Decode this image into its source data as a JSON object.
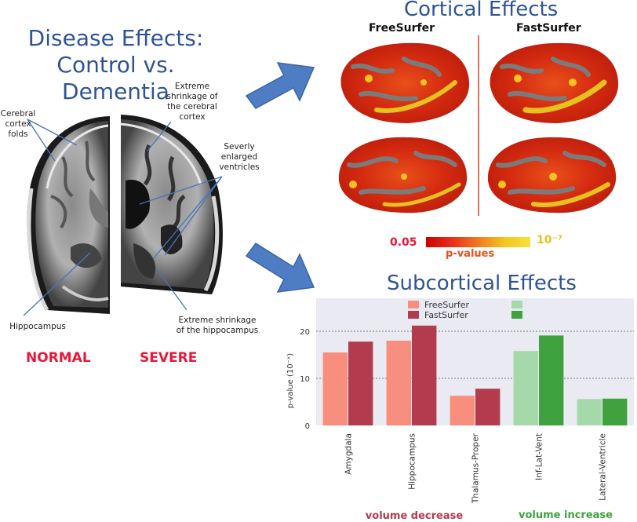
{
  "left": {
    "title_line1": "Disease Effects:",
    "title_line2": "Control vs. Dementia",
    "annotations": {
      "cortex_folds": [
        "Cerebral",
        "cortex",
        "folds"
      ],
      "shrink_cortex": [
        "Extreme",
        "shrinkage of",
        "the cerebral",
        "cortex"
      ],
      "ventricles": [
        "Severly",
        "enlarged",
        "ventricles"
      ],
      "hippocampus": "Hippocampus",
      "shrink_hippo": [
        "Extreme shrinkage",
        "of the hippocampus"
      ]
    },
    "normal_label": "NORMAL",
    "severe_label": "SEVERE"
  },
  "cortical": {
    "title": "Cortical Effects",
    "col1": "FreeSurfer",
    "col2": "FastSurfer",
    "colorbar_min": "0.05",
    "colorbar_max": "10⁻⁷",
    "colorbar_label": "p-values"
  },
  "subcortical": {
    "title": "Subcortical Effects",
    "legend": [
      "FreeSurfer",
      "FastSurfer"
    ],
    "ylabel": "p-value (10⁻ˣ)",
    "group_labels": [
      "volume decrease",
      "volume increase"
    ],
    "colors": {
      "decrease_light": "#f88f7e",
      "decrease_dark": "#b23c4e",
      "increase_light": "#a6d9a9",
      "increase_dark": "#3fa23f"
    }
  },
  "chart_data": {
    "type": "bar",
    "categories": [
      "Amygdala",
      "Hippocampus",
      "Thalamus-Proper",
      "Inf-Lat-Vent",
      "Lateral-Ventricle"
    ],
    "series": [
      {
        "name": "FreeSurfer",
        "values": [
          15.5,
          18.0,
          6.3,
          15.8,
          5.6
        ]
      },
      {
        "name": "FastSurfer",
        "values": [
          17.8,
          21.2,
          7.8,
          19.1,
          5.7
        ]
      }
    ],
    "yticks": [
      0,
      10,
      20
    ],
    "ylim": [
      0,
      27
    ],
    "ylabel": "p-value (10⁻ˣ)",
    "grid": true,
    "legend": "top"
  }
}
